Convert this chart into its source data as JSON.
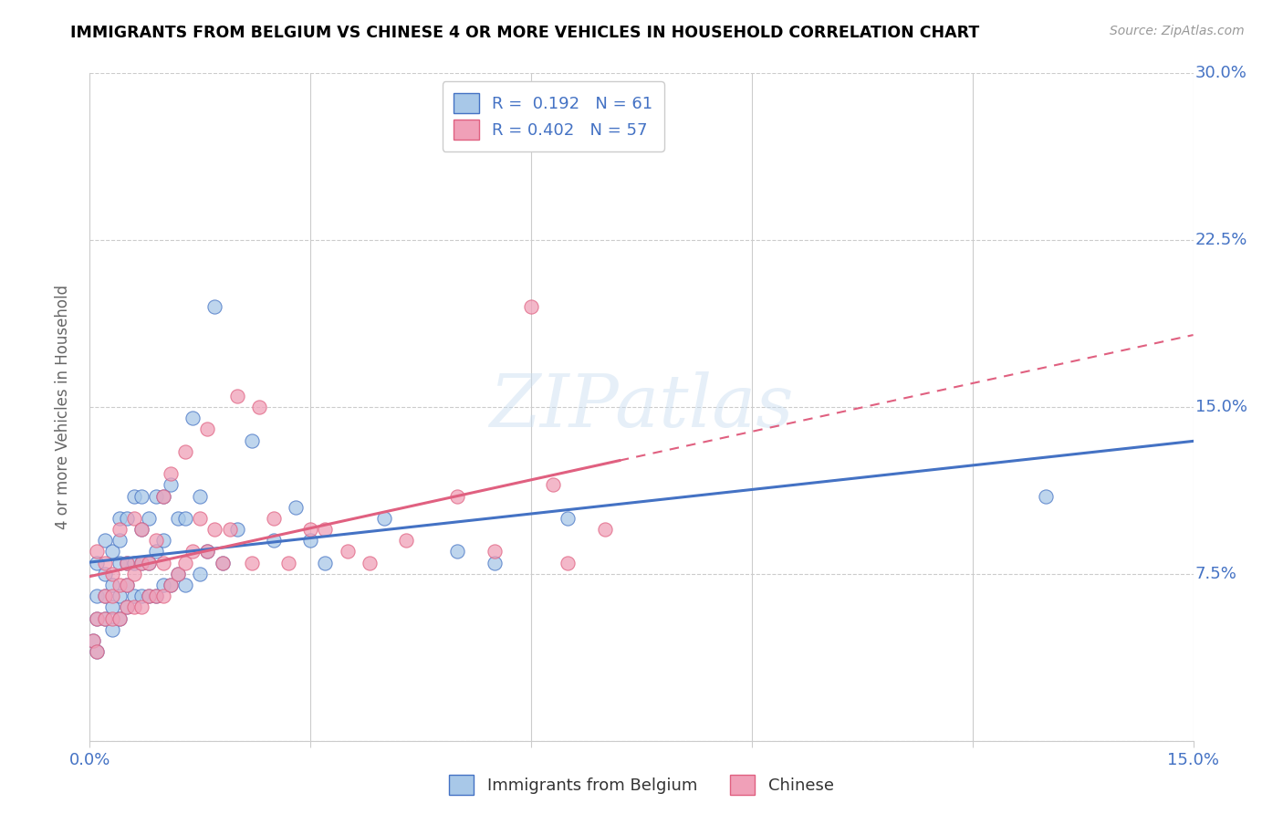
{
  "title": "IMMIGRANTS FROM BELGIUM VS CHINESE 4 OR MORE VEHICLES IN HOUSEHOLD CORRELATION CHART",
  "source_text": "Source: ZipAtlas.com",
  "ylabel": "4 or more Vehicles in Household",
  "xlim": [
    0.0,
    0.15
  ],
  "ylim": [
    0.0,
    0.3
  ],
  "xtick_positions": [
    0.0,
    0.03,
    0.06,
    0.09,
    0.12,
    0.15
  ],
  "xticklabels": [
    "0.0%",
    "",
    "",
    "",
    "",
    "15.0%"
  ],
  "ytick_positions": [
    0.0,
    0.075,
    0.15,
    0.225,
    0.3
  ],
  "yticklabels": [
    "",
    "7.5%",
    "15.0%",
    "22.5%",
    "30.0%"
  ],
  "legend_label1": "Immigrants from Belgium",
  "legend_label2": "Chinese",
  "R1": "0.192",
  "N1": "61",
  "R2": "0.402",
  "N2": "57",
  "color_blue": "#a8c8e8",
  "color_pink": "#f0a0b8",
  "color_blue_line": "#4472c4",
  "color_pink_line": "#e06080",
  "color_axis_text": "#4472c4",
  "watermark": "ZIPatlas",
  "blue_scatter_x": [
    0.0005,
    0.001,
    0.001,
    0.001,
    0.001,
    0.002,
    0.002,
    0.002,
    0.002,
    0.003,
    0.003,
    0.003,
    0.003,
    0.004,
    0.004,
    0.004,
    0.004,
    0.004,
    0.005,
    0.005,
    0.005,
    0.005,
    0.006,
    0.006,
    0.006,
    0.007,
    0.007,
    0.007,
    0.007,
    0.008,
    0.008,
    0.008,
    0.009,
    0.009,
    0.009,
    0.01,
    0.01,
    0.01,
    0.011,
    0.011,
    0.012,
    0.012,
    0.013,
    0.013,
    0.014,
    0.015,
    0.015,
    0.016,
    0.017,
    0.018,
    0.02,
    0.022,
    0.025,
    0.028,
    0.03,
    0.032,
    0.04,
    0.05,
    0.055,
    0.065,
    0.13
  ],
  "blue_scatter_y": [
    0.045,
    0.04,
    0.055,
    0.065,
    0.08,
    0.055,
    0.065,
    0.075,
    0.09,
    0.05,
    0.06,
    0.07,
    0.085,
    0.055,
    0.065,
    0.08,
    0.09,
    0.1,
    0.06,
    0.07,
    0.08,
    0.1,
    0.065,
    0.08,
    0.11,
    0.065,
    0.08,
    0.095,
    0.11,
    0.065,
    0.08,
    0.1,
    0.065,
    0.085,
    0.11,
    0.07,
    0.09,
    0.11,
    0.07,
    0.115,
    0.075,
    0.1,
    0.07,
    0.1,
    0.145,
    0.075,
    0.11,
    0.085,
    0.195,
    0.08,
    0.095,
    0.135,
    0.09,
    0.105,
    0.09,
    0.08,
    0.1,
    0.085,
    0.08,
    0.1,
    0.11
  ],
  "pink_scatter_x": [
    0.0005,
    0.001,
    0.001,
    0.001,
    0.002,
    0.002,
    0.002,
    0.003,
    0.003,
    0.003,
    0.004,
    0.004,
    0.004,
    0.005,
    0.005,
    0.005,
    0.006,
    0.006,
    0.006,
    0.007,
    0.007,
    0.007,
    0.008,
    0.008,
    0.009,
    0.009,
    0.01,
    0.01,
    0.01,
    0.011,
    0.011,
    0.012,
    0.013,
    0.013,
    0.014,
    0.015,
    0.016,
    0.016,
    0.017,
    0.018,
    0.019,
    0.02,
    0.022,
    0.023,
    0.025,
    0.027,
    0.03,
    0.032,
    0.035,
    0.038,
    0.043,
    0.05,
    0.055,
    0.06,
    0.063,
    0.065,
    0.07
  ],
  "pink_scatter_y": [
    0.045,
    0.04,
    0.055,
    0.085,
    0.055,
    0.065,
    0.08,
    0.055,
    0.065,
    0.075,
    0.055,
    0.07,
    0.095,
    0.06,
    0.07,
    0.08,
    0.06,
    0.075,
    0.1,
    0.06,
    0.08,
    0.095,
    0.065,
    0.08,
    0.065,
    0.09,
    0.065,
    0.08,
    0.11,
    0.07,
    0.12,
    0.075,
    0.08,
    0.13,
    0.085,
    0.1,
    0.085,
    0.14,
    0.095,
    0.08,
    0.095,
    0.155,
    0.08,
    0.15,
    0.1,
    0.08,
    0.095,
    0.095,
    0.085,
    0.08,
    0.09,
    0.11,
    0.085,
    0.195,
    0.115,
    0.08,
    0.095
  ],
  "pink_line_solid_xmax": 0.072,
  "blue_line_end": 0.15
}
